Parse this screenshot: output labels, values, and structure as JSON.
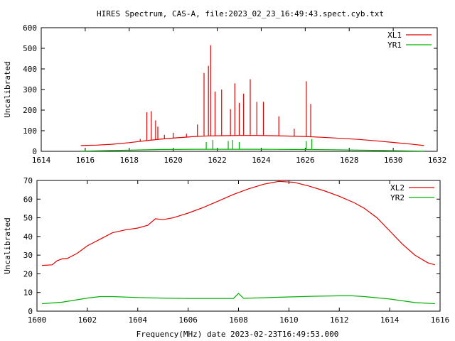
{
  "title": "HIRES Spectrum, CAS-A, file:2023_02_23_16:49:43.spect.cyb.txt",
  "xlabel": "Frequency(MHz) date 2023-02-23T16:49:53.000",
  "colors": {
    "red": "#e00000",
    "green": "#00b000",
    "axis": "#000000"
  },
  "chart_data": [
    {
      "type": "line",
      "ylabel": "Uncalibrated",
      "xlim": [
        1614,
        1632
      ],
      "ylim": [
        0,
        600
      ],
      "xticks": [
        "1614",
        "1616",
        "1618",
        "1620",
        "1622",
        "1624",
        "1626",
        "1628",
        "1630",
        "1632"
      ],
      "yticks": [
        "0",
        "100",
        "200",
        "300",
        "400",
        "500",
        "600"
      ],
      "legend_position": "top-right",
      "series": [
        {
          "name": "XL1",
          "color": "#e00000",
          "x": [
            1615.8,
            1616.5,
            1617.2,
            1618.0,
            1618.8,
            1619.5,
            1620.2,
            1621.0,
            1621.6,
            1622.3,
            1623.0,
            1623.8,
            1624.5,
            1625.2,
            1626.0,
            1626.8,
            1627.6,
            1628.4,
            1629.2,
            1630.0,
            1630.8,
            1631.4
          ],
          "values": [
            28,
            30,
            34,
            42,
            52,
            60,
            66,
            72,
            75,
            76,
            77,
            77,
            76,
            74,
            72,
            68,
            63,
            58,
            51,
            43,
            35,
            28
          ],
          "spikes": [
            [
              1618.5,
              60
            ],
            [
              1618.8,
              190
            ],
            [
              1619.0,
              195
            ],
            [
              1619.2,
              150
            ],
            [
              1619.3,
              120
            ],
            [
              1619.6,
              80
            ],
            [
              1620.0,
              90
            ],
            [
              1620.6,
              85
            ],
            [
              1621.1,
              130
            ],
            [
              1621.4,
              380
            ],
            [
              1621.6,
              415
            ],
            [
              1621.7,
              515
            ],
            [
              1621.9,
              290
            ],
            [
              1622.2,
              300
            ],
            [
              1622.6,
              205
            ],
            [
              1622.8,
              330
            ],
            [
              1623.0,
              235
            ],
            [
              1623.2,
              280
            ],
            [
              1623.5,
              350
            ],
            [
              1623.8,
              240
            ],
            [
              1624.1,
              240
            ],
            [
              1624.8,
              170
            ],
            [
              1625.5,
              110
            ],
            [
              1626.05,
              340
            ],
            [
              1626.25,
              230
            ]
          ]
        },
        {
          "name": "YR1",
          "color": "#00b000",
          "x": [
            1615.8,
            1616.8,
            1618.0,
            1619.5,
            1621.0,
            1622.5,
            1624.0,
            1625.5,
            1627.0,
            1628.5,
            1630.0,
            1631.4
          ],
          "values": [
            1,
            3,
            6,
            9,
            10,
            10,
            10,
            9,
            8,
            6,
            3,
            1
          ],
          "spikes": [
            [
              1621.5,
              45
            ],
            [
              1621.8,
              55
            ],
            [
              1622.5,
              50
            ],
            [
              1622.7,
              55
            ],
            [
              1623.0,
              45
            ],
            [
              1626.05,
              50
            ],
            [
              1626.3,
              60
            ]
          ]
        }
      ]
    },
    {
      "type": "line",
      "ylabel": "Uncalibrated",
      "xlim": [
        1600,
        1616
      ],
      "ylim": [
        0,
        70
      ],
      "xticks": [
        "1600",
        "1602",
        "1604",
        "1606",
        "1608",
        "1610",
        "1612",
        "1614",
        "1616"
      ],
      "yticks": [
        "0",
        "10",
        "20",
        "30",
        "40",
        "50",
        "60",
        "70"
      ],
      "legend_position": "top-right",
      "series": [
        {
          "name": "XL2",
          "color": "#e00000",
          "x": [
            1600.2,
            1600.6,
            1600.8,
            1601.0,
            1601.2,
            1601.6,
            1602.0,
            1602.5,
            1603.0,
            1603.5,
            1604.0,
            1604.4,
            1604.7,
            1605.0,
            1605.4,
            1606.0,
            1606.6,
            1607.2,
            1607.8,
            1608.4,
            1609.0,
            1609.6,
            1610.2,
            1610.8,
            1611.4,
            1612.0,
            1612.6,
            1613.0,
            1613.5,
            1614.0,
            1614.5,
            1615.0,
            1615.5,
            1615.8
          ],
          "values": [
            24.5,
            24.8,
            27.0,
            28.0,
            28.2,
            31.0,
            35.0,
            38.5,
            42.0,
            43.5,
            44.5,
            46.0,
            49.5,
            49.0,
            50.0,
            52.5,
            55.5,
            59.0,
            62.5,
            65.5,
            68.0,
            69.5,
            69.0,
            67.0,
            64.5,
            61.5,
            58.0,
            55.0,
            50.0,
            43.0,
            36.0,
            30.0,
            26.0,
            24.8
          ]
        },
        {
          "name": "YR2",
          "color": "#00b000",
          "x": [
            1600.2,
            1601.0,
            1602.0,
            1602.5,
            1603.0,
            1604.0,
            1605.0,
            1606.0,
            1607.0,
            1607.8,
            1608.0,
            1608.2,
            1609.0,
            1610.0,
            1611.0,
            1612.0,
            1612.5,
            1613.0,
            1614.0,
            1615.0,
            1615.8
          ],
          "values": [
            4.0,
            4.8,
            7.0,
            7.8,
            7.8,
            7.3,
            7.0,
            6.8,
            6.8,
            6.8,
            9.5,
            6.9,
            7.2,
            7.6,
            8.0,
            8.2,
            8.2,
            7.8,
            6.5,
            4.6,
            4.0
          ]
        }
      ]
    }
  ]
}
